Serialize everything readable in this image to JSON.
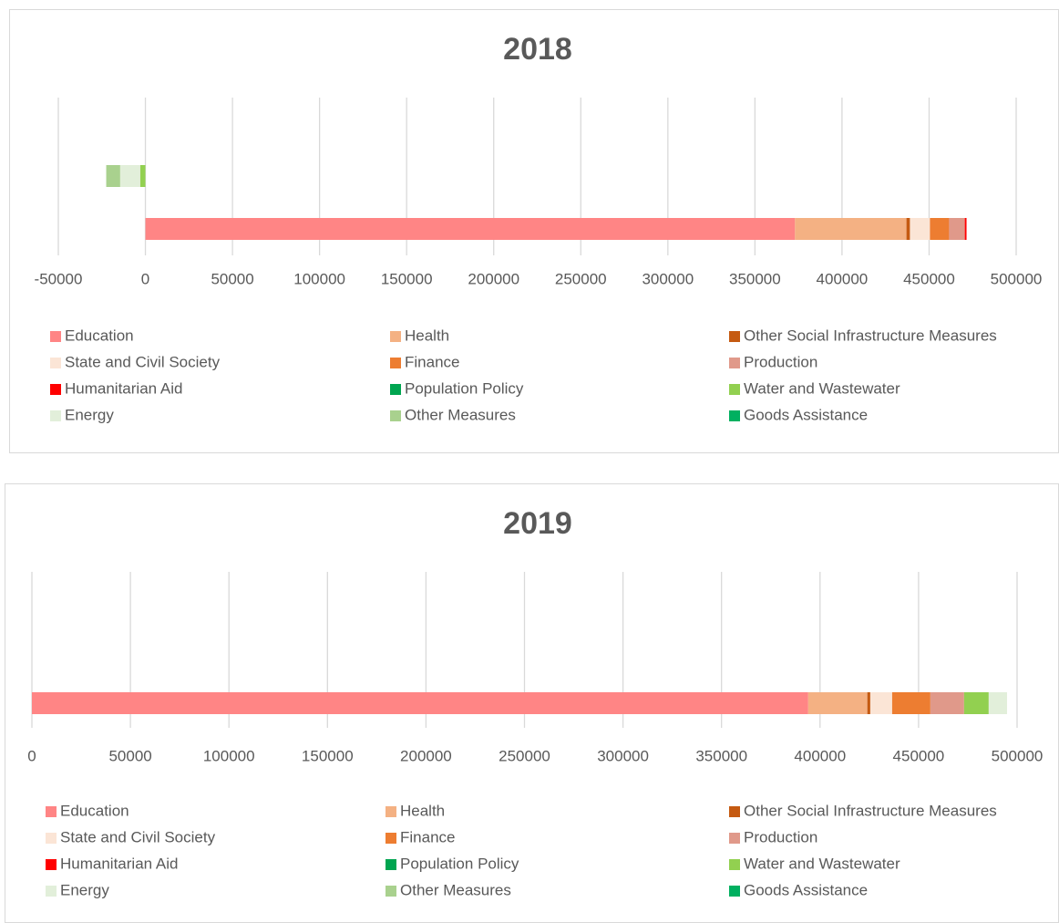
{
  "chart_data": [
    {
      "type": "stacked_barh",
      "title": "2018",
      "categories": [
        null,
        null
      ],
      "xlim": [
        -50000,
        500000
      ],
      "xticks": [
        -50000,
        0,
        50000,
        100000,
        150000,
        200000,
        250000,
        300000,
        350000,
        400000,
        450000,
        500000
      ],
      "grid": true,
      "series": [
        {
          "name": "Education",
          "color": "#ff8585",
          "values": [
            0,
            373000
          ]
        },
        {
          "name": "Health",
          "color": "#f4b183",
          "values": [
            0,
            64000
          ]
        },
        {
          "name": "Other Social Infrastructure Measures",
          "color": "#c55a11",
          "values": [
            0,
            2000
          ]
        },
        {
          "name": "State and Civil Society",
          "color": "#fbe5d6",
          "values": [
            0,
            11500
          ]
        },
        {
          "name": "Finance",
          "color": "#ed7d31",
          "values": [
            0,
            11000
          ]
        },
        {
          "name": "Production",
          "color": "#e0998a",
          "values": [
            0,
            9000
          ]
        },
        {
          "name": "Humanitarian Aid",
          "color": "#ff0000",
          "values": [
            0,
            1000
          ]
        },
        {
          "name": "Population Policy",
          "color": "#00a550",
          "values": [
            0,
            0
          ]
        },
        {
          "name": "Water and Wastewater",
          "color": "#92d050",
          "values": [
            -3000,
            0
          ]
        },
        {
          "name": "Energy",
          "color": "#e2efda",
          "values": [
            -11500,
            0
          ]
        },
        {
          "name": "Other Measures",
          "color": "#a9d18e",
          "values": [
            -8000,
            0
          ]
        },
        {
          "name": "Goods Assistance",
          "color": "#00b060",
          "values": [
            0,
            0
          ]
        }
      ]
    },
    {
      "type": "stacked_barh",
      "title": "2019",
      "categories": [
        null,
        null
      ],
      "xlim": [
        0,
        500000
      ],
      "xticks": [
        0,
        50000,
        100000,
        150000,
        200000,
        250000,
        300000,
        350000,
        400000,
        450000,
        500000
      ],
      "grid": true,
      "series": [
        {
          "name": "Education",
          "color": "#ff8585",
          "values": [
            0,
            394000
          ]
        },
        {
          "name": "Health",
          "color": "#f4b183",
          "values": [
            0,
            30000
          ]
        },
        {
          "name": "Other Social Infrastructure Measures",
          "color": "#c55a11",
          "values": [
            0,
            1500
          ]
        },
        {
          "name": "State and Civil Society",
          "color": "#fbe5d6",
          "values": [
            0,
            11100
          ]
        },
        {
          "name": "Finance",
          "color": "#ed7d31",
          "values": [
            0,
            19400
          ]
        },
        {
          "name": "Production",
          "color": "#e0998a",
          "values": [
            0,
            17100
          ]
        },
        {
          "name": "Humanitarian Aid",
          "color": "#ff0000",
          "values": [
            0,
            0
          ]
        },
        {
          "name": "Population Policy",
          "color": "#00a550",
          "values": [
            0,
            0
          ]
        },
        {
          "name": "Water and Wastewater",
          "color": "#92d050",
          "values": [
            0,
            12500
          ]
        },
        {
          "name": "Energy",
          "color": "#e2efda",
          "values": [
            0,
            9300
          ]
        },
        {
          "name": "Other Measures",
          "color": "#a9d18e",
          "values": [
            0,
            0
          ]
        },
        {
          "name": "Goods Assistance",
          "color": "#00b060",
          "values": [
            0,
            0
          ]
        }
      ]
    }
  ]
}
